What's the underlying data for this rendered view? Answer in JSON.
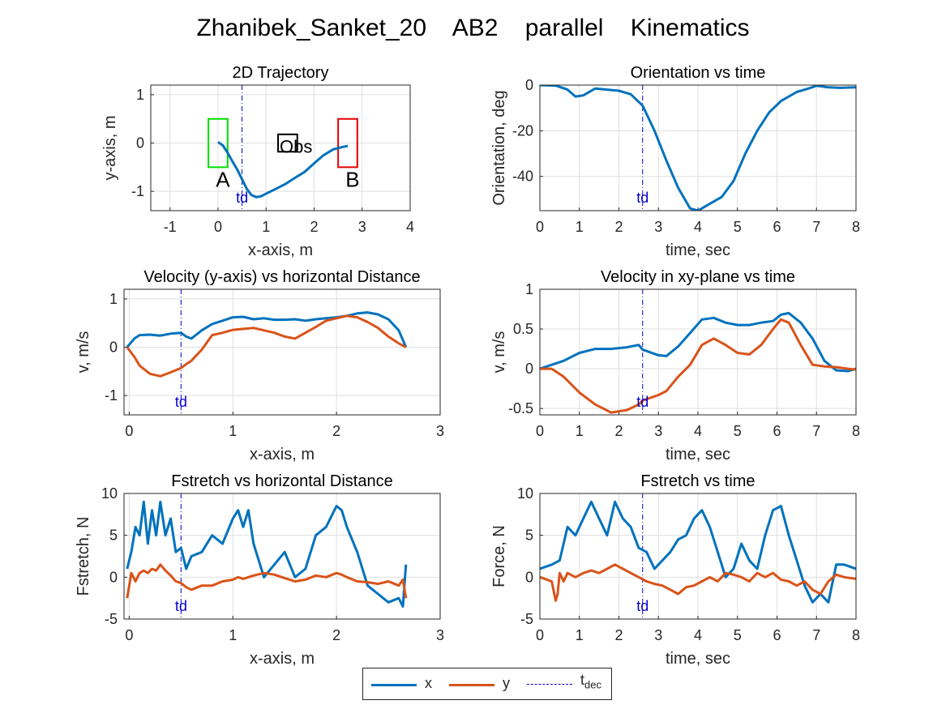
{
  "figure_title": "Zhanibek_Sanket_20    AB2    parallel    Kinematics",
  "colors": {
    "x": "#0072BD",
    "y": "#D95319",
    "t_dec": "#0000CD",
    "start_box": "#00DD00",
    "end_box": "#E60000",
    "obs_box": "#000000"
  },
  "legend": {
    "x_label": "x",
    "y_label": "y",
    "tdec_label": "t",
    "tdec_sub": "dec"
  },
  "chart_data": [
    {
      "id": "traj",
      "type": "line",
      "title": "2D Trajectory",
      "xlabel": "x-axis, m",
      "ylabel": "y-axis, m",
      "xlim": [
        -1.4,
        4.0
      ],
      "ylim": [
        -1.4,
        1.2
      ],
      "xticks": [
        -1,
        0,
        1,
        2,
        3,
        4
      ],
      "yticks": [
        -1,
        0,
        1
      ],
      "grid": true,
      "td_x": 0.5,
      "td_label": "td",
      "series": [
        {
          "key": "x",
          "x": [
            0.0,
            0.1,
            0.2,
            0.3,
            0.4,
            0.5,
            0.6,
            0.7,
            0.8,
            0.9,
            1.0,
            1.2,
            1.4,
            1.6,
            1.8,
            2.0,
            2.2,
            2.4,
            2.6,
            2.7
          ],
          "y": [
            0.02,
            -0.05,
            -0.2,
            -0.38,
            -0.55,
            -0.75,
            -0.95,
            -1.08,
            -1.12,
            -1.1,
            -1.05,
            -0.95,
            -0.85,
            -0.72,
            -0.6,
            -0.42,
            -0.25,
            -0.13,
            -0.08,
            -0.06
          ]
        }
      ],
      "rects": [
        {
          "key": "start_box",
          "x": [
            -0.2,
            0.2
          ],
          "y": [
            -0.5,
            0.5
          ],
          "label": "A"
        },
        {
          "key": "end_box",
          "x": [
            2.5,
            2.9
          ],
          "y": [
            -0.5,
            0.5
          ],
          "label": "B"
        },
        {
          "key": "obs_box",
          "x": [
            1.25,
            1.65
          ],
          "y": [
            -0.18,
            0.18
          ],
          "label": "Obs"
        }
      ]
    },
    {
      "id": "orient",
      "type": "line",
      "title": "Orientation vs time",
      "xlabel": "time, sec",
      "ylabel": "Orientation, deg",
      "xlim": [
        0,
        8
      ],
      "ylim": [
        -55,
        0
      ],
      "xticks": [
        0,
        1,
        2,
        3,
        4,
        5,
        6,
        7,
        8
      ],
      "yticks": [
        -40,
        -20,
        0
      ],
      "grid": true,
      "td_x": 2.6,
      "td_label": "td",
      "series": [
        {
          "key": "x",
          "x": [
            0,
            0.4,
            0.7,
            0.9,
            1.1,
            1.4,
            1.7,
            2.0,
            2.3,
            2.6,
            2.9,
            3.2,
            3.5,
            3.8,
            4.0,
            4.3,
            4.6,
            4.9,
            5.2,
            5.5,
            5.8,
            6.1,
            6.5,
            6.8,
            7.0,
            7.3,
            7.6,
            8.0
          ],
          "y": [
            0,
            -0.2,
            -2,
            -5,
            -4.5,
            -1.5,
            -2,
            -2.5,
            -4,
            -9,
            -20,
            -33,
            -45,
            -54,
            -55,
            -52,
            -49,
            -42,
            -30,
            -20,
            -12,
            -7,
            -3,
            -1.5,
            -0.3,
            -1,
            -1.2,
            -1
          ]
        }
      ]
    },
    {
      "id": "vdist",
      "type": "line",
      "title": "Velocity (y-axis) vs horizontal Distance",
      "xlabel": "x-axis, m",
      "ylabel": "v, m/s",
      "xlim": [
        -0.05,
        3.0
      ],
      "ylim": [
        -1.4,
        1.2
      ],
      "xticks": [
        0,
        1,
        2,
        3
      ],
      "yticks": [
        -1,
        0,
        1
      ],
      "grid": true,
      "td_x": 0.5,
      "td_label": "td",
      "series": [
        {
          "key": "x",
          "x": [
            -0.02,
            0.05,
            0.1,
            0.2,
            0.3,
            0.4,
            0.5,
            0.55,
            0.6,
            0.7,
            0.8,
            0.9,
            1.0,
            1.1,
            1.2,
            1.3,
            1.4,
            1.5,
            1.6,
            1.7,
            1.8,
            1.9,
            2.0,
            2.1,
            2.2,
            2.3,
            2.4,
            2.5,
            2.6,
            2.67
          ],
          "y": [
            0,
            0.18,
            0.25,
            0.26,
            0.24,
            0.28,
            0.3,
            0.22,
            0.18,
            0.35,
            0.48,
            0.55,
            0.62,
            0.63,
            0.58,
            0.6,
            0.57,
            0.57,
            0.58,
            0.55,
            0.58,
            0.6,
            0.62,
            0.65,
            0.7,
            0.72,
            0.68,
            0.58,
            0.35,
            0.0
          ]
        },
        {
          "key": "y",
          "x": [
            -0.02,
            0.05,
            0.1,
            0.2,
            0.3,
            0.4,
            0.5,
            0.55,
            0.6,
            0.7,
            0.8,
            0.9,
            1.0,
            1.1,
            1.2,
            1.3,
            1.4,
            1.5,
            1.6,
            1.7,
            1.8,
            1.9,
            2.0,
            2.1,
            2.2,
            2.3,
            2.4,
            2.5,
            2.6,
            2.67
          ],
          "y": [
            0,
            -0.2,
            -0.38,
            -0.55,
            -0.6,
            -0.52,
            -0.43,
            -0.35,
            -0.28,
            -0.05,
            0.25,
            0.3,
            0.36,
            0.38,
            0.4,
            0.35,
            0.3,
            0.22,
            0.18,
            0.3,
            0.42,
            0.55,
            0.6,
            0.65,
            0.62,
            0.52,
            0.4,
            0.22,
            0.08,
            0.0
          ]
        }
      ]
    },
    {
      "id": "vtime",
      "type": "line",
      "title": "Velocity in xy-plane vs time",
      "xlabel": "time, sec",
      "ylabel": "v, m/s",
      "xlim": [
        0,
        8
      ],
      "ylim": [
        -0.58,
        1.0
      ],
      "xticks": [
        0,
        1,
        2,
        3,
        4,
        5,
        6,
        7,
        8
      ],
      "yticks": [
        -0.5,
        0,
        0.5,
        1
      ],
      "grid": true,
      "td_x": 2.6,
      "td_label": "td",
      "series": [
        {
          "key": "x",
          "x": [
            0,
            0.3,
            0.6,
            1.0,
            1.4,
            1.8,
            2.2,
            2.5,
            2.6,
            3.0,
            3.2,
            3.5,
            3.8,
            4.1,
            4.4,
            4.7,
            5.0,
            5.3,
            5.6,
            5.9,
            6.1,
            6.3,
            6.6,
            6.9,
            7.2,
            7.5,
            7.8,
            8.0
          ],
          "y": [
            0,
            0.05,
            0.1,
            0.2,
            0.25,
            0.25,
            0.27,
            0.3,
            0.24,
            0.17,
            0.16,
            0.28,
            0.45,
            0.62,
            0.64,
            0.58,
            0.55,
            0.55,
            0.58,
            0.6,
            0.68,
            0.7,
            0.58,
            0.38,
            0.1,
            -0.02,
            -0.03,
            0
          ]
        },
        {
          "key": "y",
          "x": [
            0,
            0.3,
            0.6,
            1.0,
            1.4,
            1.8,
            2.2,
            2.5,
            2.6,
            3.0,
            3.2,
            3.5,
            3.8,
            4.1,
            4.4,
            4.7,
            5.0,
            5.3,
            5.6,
            5.9,
            6.1,
            6.3,
            6.6,
            6.9,
            7.2,
            7.5,
            7.8,
            8.0
          ],
          "y": [
            0,
            0,
            -0.1,
            -0.3,
            -0.45,
            -0.55,
            -0.52,
            -0.45,
            -0.4,
            -0.33,
            -0.28,
            -0.1,
            0.05,
            0.3,
            0.38,
            0.3,
            0.2,
            0.18,
            0.3,
            0.5,
            0.62,
            0.58,
            0.3,
            0.05,
            0.03,
            0.02,
            0.0,
            -0.01
          ]
        }
      ]
    },
    {
      "id": "fdist",
      "type": "line",
      "title": "Fstretch vs horizontal Distance",
      "xlabel": "x-axis, m",
      "ylabel": "Fstretch, N",
      "xlim": [
        -0.05,
        3.0
      ],
      "ylim": [
        -5,
        10
      ],
      "xticks": [
        0,
        1,
        2,
        3
      ],
      "yticks": [
        -5,
        0,
        5,
        10
      ],
      "grid": true,
      "td_x": 0.5,
      "td_label": "td",
      "series": [
        {
          "key": "x",
          "x": [
            -0.02,
            0.02,
            0.06,
            0.1,
            0.14,
            0.18,
            0.22,
            0.26,
            0.3,
            0.35,
            0.4,
            0.45,
            0.5,
            0.55,
            0.6,
            0.7,
            0.8,
            0.9,
            1.0,
            1.05,
            1.1,
            1.15,
            1.2,
            1.3,
            1.4,
            1.5,
            1.6,
            1.7,
            1.8,
            1.9,
            2.0,
            2.05,
            2.1,
            2.2,
            2.3,
            2.4,
            2.5,
            2.6,
            2.64,
            2.67
          ],
          "y": [
            1,
            3,
            6,
            5,
            9,
            4,
            8,
            5,
            9,
            5,
            7,
            3,
            3.5,
            1,
            2.5,
            3,
            5,
            4,
            7,
            8,
            6,
            8,
            4,
            0,
            1.5,
            3,
            0,
            1,
            5,
            6,
            8.5,
            8,
            6,
            3,
            -1,
            -2,
            -3,
            -2.5,
            -3.5,
            1.5
          ]
        },
        {
          "key": "y",
          "x": [
            -0.02,
            0.02,
            0.06,
            0.1,
            0.14,
            0.18,
            0.22,
            0.26,
            0.3,
            0.35,
            0.4,
            0.45,
            0.5,
            0.55,
            0.6,
            0.7,
            0.8,
            0.9,
            1.0,
            1.05,
            1.1,
            1.15,
            1.2,
            1.3,
            1.4,
            1.5,
            1.6,
            1.7,
            1.8,
            1.9,
            2.0,
            2.05,
            2.1,
            2.2,
            2.3,
            2.4,
            2.5,
            2.6,
            2.64,
            2.67
          ],
          "y": [
            -2.5,
            0.5,
            -0.5,
            0.5,
            0.8,
            0.5,
            1,
            0.8,
            1.5,
            0.8,
            0.2,
            -0.5,
            -0.7,
            -1.2,
            -1.5,
            -1,
            -1,
            -0.5,
            -0.3,
            0,
            -0.2,
            0,
            0.2,
            0.5,
            0.3,
            -0.1,
            -0.5,
            -0.3,
            0.2,
            0,
            0.5,
            0.3,
            0,
            -0.5,
            -0.6,
            -0.8,
            -0.5,
            -1,
            -0.3,
            -2.5
          ]
        }
      ]
    },
    {
      "id": "ftime",
      "type": "line",
      "title": "Fstretch vs time",
      "xlabel": "time, sec",
      "ylabel": "Force, N",
      "xlim": [
        0,
        8
      ],
      "ylim": [
        -5,
        10
      ],
      "xticks": [
        0,
        1,
        2,
        3,
        4,
        5,
        6,
        7,
        8
      ],
      "yticks": [
        -5,
        0,
        5,
        10
      ],
      "grid": true,
      "td_x": 2.6,
      "td_label": "td",
      "series": [
        {
          "key": "x",
          "x": [
            0,
            0.3,
            0.5,
            0.7,
            0.9,
            1.1,
            1.3,
            1.5,
            1.7,
            1.9,
            2.1,
            2.3,
            2.5,
            2.7,
            2.9,
            3.1,
            3.3,
            3.5,
            3.7,
            3.9,
            4.1,
            4.3,
            4.5,
            4.7,
            4.9,
            5.1,
            5.3,
            5.5,
            5.7,
            5.9,
            6.1,
            6.3,
            6.5,
            6.7,
            6.9,
            7.1,
            7.3,
            7.5,
            7.7,
            8.0
          ],
          "y": [
            1,
            1.5,
            2,
            6,
            5,
            7,
            9,
            7,
            5,
            9,
            7,
            6,
            3.5,
            3,
            1,
            2,
            3,
            4.5,
            5,
            7,
            8,
            6,
            3,
            0,
            1,
            4,
            2,
            1,
            5,
            8,
            8.5,
            5,
            2,
            -1,
            -3,
            -2,
            -3,
            1.5,
            1.5,
            1
          ]
        },
        {
          "key": "y",
          "x": [
            0,
            0.3,
            0.4,
            0.45,
            0.5,
            0.6,
            0.7,
            0.9,
            1.1,
            1.3,
            1.5,
            1.7,
            1.9,
            2.1,
            2.3,
            2.5,
            2.7,
            2.9,
            3.1,
            3.3,
            3.5,
            3.7,
            3.9,
            4.1,
            4.3,
            4.5,
            4.7,
            4.9,
            5.1,
            5.3,
            5.5,
            5.7,
            5.9,
            6.1,
            6.3,
            6.5,
            6.7,
            6.9,
            7.1,
            7.3,
            7.5,
            7.7,
            8.0
          ],
          "y": [
            0,
            -0.5,
            -2.8,
            -2,
            0.5,
            -0.5,
            0.5,
            0,
            0.5,
            0.8,
            0.5,
            1,
            1.5,
            1,
            0.5,
            0,
            -0.5,
            -0.8,
            -1,
            -1.5,
            -2,
            -1.2,
            -1,
            -0.5,
            0,
            -0.5,
            0.5,
            0.3,
            0,
            -0.5,
            0.5,
            0,
            0.5,
            -0.3,
            -0.5,
            -1,
            -0.5,
            -1.5,
            -2,
            -0.5,
            0.3,
            0,
            -0.2
          ]
        }
      ]
    }
  ]
}
